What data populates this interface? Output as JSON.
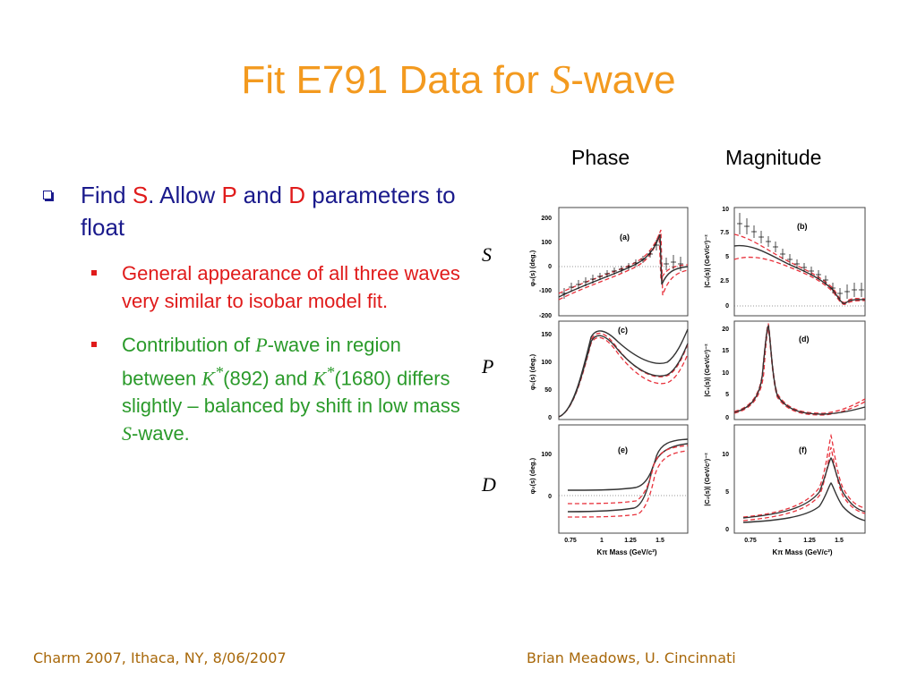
{
  "title": {
    "prefix": "Fit E791 Data for ",
    "italic": "S",
    "suffix": "-wave"
  },
  "bullets": {
    "main": {
      "t1": "Find ",
      "s": "S",
      "t2": ".  Allow ",
      "p": "P",
      "t3": " and ",
      "d": "D",
      "t4": " parameters to float"
    },
    "sub1": "General appearance of all three waves very similar to isobar model fit.",
    "sub2": {
      "t1": "Contribution of ",
      "p": "P",
      "t2": "-wave in region between ",
      "k1": "K",
      "sup1": "*",
      "t3": "(892) and ",
      "k2": "K",
      "sup2": "*",
      "t4": "(1680) differs slightly – balanced by shift in low mass ",
      "s": "S",
      "t5": "-wave."
    }
  },
  "figure": {
    "col_phase": "Phase",
    "col_magnitude": "Magnitude",
    "row_labels": {
      "s": "S",
      "p": "P",
      "d": "D"
    },
    "panels": {
      "a": {
        "tag": "(a)",
        "ylabel": "φ₀(s)  (deg.)",
        "yticks": [
          "200",
          "100",
          "0",
          "-100",
          "-200"
        ]
      },
      "b": {
        "tag": "(b)",
        "ylabel": "|C₀(s)|  (GeV/c²)⁻²",
        "yticks": [
          "10",
          "7.5",
          "5",
          "2.5",
          "0"
        ]
      },
      "c": {
        "tag": "(c)",
        "ylabel": "φ₁(s)  (deg.)",
        "yticks": [
          "150",
          "100",
          "50",
          "0"
        ]
      },
      "d": {
        "tag": "(d)",
        "ylabel": "|C₁(s)|  (GeV/c²)⁻²",
        "yticks": [
          "20",
          "15",
          "10",
          "5",
          "0"
        ]
      },
      "e": {
        "tag": "(e)",
        "ylabel": "φ₂(s)  (deg.)",
        "yticks": [
          "100",
          "0"
        ]
      },
      "f": {
        "tag": "(f)",
        "ylabel": "|C₂(s)|  (GeV/c²)⁻²",
        "yticks": [
          "10",
          "5",
          "0"
        ]
      }
    },
    "xticks": [
      "0.75",
      "1",
      "1.25",
      "1.5"
    ],
    "xlabel": "Kπ Mass (GeV/c²)",
    "colors": {
      "fit": "#333333",
      "band": "#e8323c",
      "points": "#000000"
    }
  },
  "footer": {
    "left": "Charm 2007, Ithaca, NY, 8/06/2007",
    "right": "Brian Meadows, U. Cincinnati"
  }
}
